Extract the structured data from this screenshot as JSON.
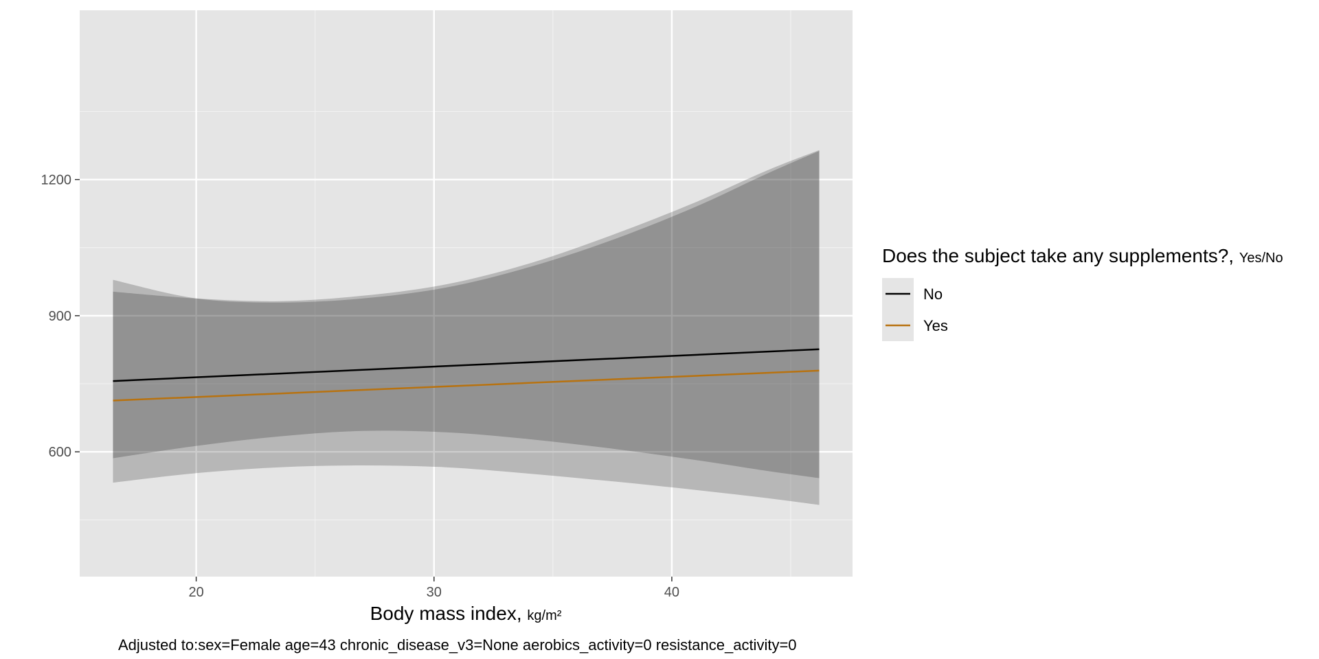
{
  "chart_data": {
    "type": "line",
    "title": "",
    "xlabel": "Body mass index",
    "xlabel_unit": "kg/m²",
    "ylabel": "",
    "xlim": [
      15.1,
      47.6
    ],
    "ylim": [
      325,
      1573
    ],
    "x_ticks": [
      20,
      30,
      40
    ],
    "y_ticks": [
      600,
      900,
      1200
    ],
    "x_minor_ticks": [
      25,
      35,
      45
    ],
    "y_minor_ticks": [
      450,
      750,
      1050,
      1350
    ],
    "grid": true,
    "legend": {
      "position": "right",
      "title": "Does the subject take any supplements?,",
      "title_unit": "Yes/No"
    },
    "caption": "Adjusted to:sex=Female age=43 chronic_disease_v3=None aerobics_activity=0 resistance_activity=0",
    "series": [
      {
        "name": "No",
        "color": "#000000",
        "x": [
          16.5,
          46.2
        ],
        "y": [
          756,
          826
        ],
        "band_x": [
          16.5,
          20,
          23.5,
          27,
          30.5,
          34,
          37.5,
          41,
          44,
          46.2
        ],
        "band_lower": [
          586,
          613,
          634,
          646,
          643,
          628,
          607,
          582,
          558,
          542
        ],
        "band_upper": [
          953,
          938,
          932,
          944,
          969,
          1015,
          1078,
          1150,
          1220,
          1265
        ]
      },
      {
        "name": "Yes",
        "color": "#b8720f",
        "x": [
          16.5,
          46.2
        ],
        "y": [
          713,
          779
        ],
        "band_x": [
          16.5,
          20,
          23.5,
          27,
          30.5,
          34,
          37.5,
          41,
          44,
          46.2
        ],
        "band_lower": [
          532,
          553,
          566,
          570,
          566,
          552,
          535,
          516,
          498,
          483
        ],
        "band_upper": [
          979,
          938,
          929,
          938,
          962,
          1007,
          1067,
          1140,
          1213,
          1263
        ]
      }
    ]
  }
}
